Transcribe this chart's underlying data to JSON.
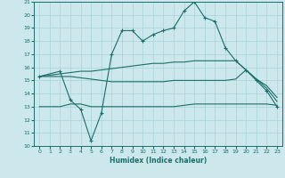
{
  "xlabel": "Humidex (Indice chaleur)",
  "bg_color": "#cce8ec",
  "grid_color": "#a8d4d8",
  "line_color": "#1a6e6a",
  "xlim": [
    -0.5,
    23.5
  ],
  "ylim": [
    10,
    21
  ],
  "xticks": [
    0,
    1,
    2,
    3,
    4,
    5,
    6,
    7,
    8,
    9,
    10,
    11,
    12,
    13,
    14,
    15,
    16,
    17,
    18,
    19,
    20,
    21,
    22,
    23
  ],
  "yticks": [
    10,
    11,
    12,
    13,
    14,
    15,
    16,
    17,
    18,
    19,
    20,
    21
  ],
  "line1_x": [
    0,
    2,
    3,
    4,
    5,
    6,
    7,
    8,
    9,
    10,
    11,
    12,
    13,
    14,
    15,
    16,
    17,
    18,
    19,
    20,
    21,
    22,
    23
  ],
  "line1_y": [
    15.3,
    15.7,
    13.5,
    12.8,
    10.4,
    12.5,
    17.0,
    18.8,
    18.8,
    18.0,
    18.5,
    18.8,
    19.0,
    20.3,
    21.0,
    19.8,
    19.5,
    17.5,
    16.5,
    15.8,
    15.0,
    14.2,
    13.0
  ],
  "line2_x": [
    0,
    2,
    3,
    4,
    5,
    6,
    7,
    8,
    9,
    10,
    11,
    12,
    13,
    14,
    15,
    16,
    17,
    18,
    19,
    20,
    21,
    22,
    23
  ],
  "line2_y": [
    15.3,
    15.5,
    15.6,
    15.7,
    15.7,
    15.8,
    15.9,
    16.0,
    16.1,
    16.2,
    16.3,
    16.3,
    16.4,
    16.4,
    16.5,
    16.5,
    16.5,
    16.5,
    16.5,
    15.8,
    15.1,
    14.4,
    13.4
  ],
  "line3_x": [
    0,
    2,
    3,
    4,
    5,
    6,
    7,
    8,
    9,
    10,
    11,
    12,
    13,
    14,
    15,
    16,
    17,
    18,
    19,
    20,
    21,
    22,
    23
  ],
  "line3_y": [
    15.3,
    15.3,
    15.3,
    15.2,
    15.1,
    15.0,
    14.9,
    14.9,
    14.9,
    14.9,
    14.9,
    14.9,
    15.0,
    15.0,
    15.0,
    15.0,
    15.0,
    15.0,
    15.1,
    15.8,
    15.1,
    14.6,
    13.7
  ],
  "line4_x": [
    0,
    2,
    3,
    4,
    5,
    6,
    7,
    8,
    9,
    10,
    11,
    12,
    13,
    14,
    15,
    16,
    17,
    18,
    19,
    20,
    21,
    22,
    23
  ],
  "line4_y": [
    13.0,
    13.0,
    13.2,
    13.2,
    13.0,
    13.0,
    13.0,
    13.0,
    13.0,
    13.0,
    13.0,
    13.0,
    13.0,
    13.1,
    13.2,
    13.2,
    13.2,
    13.2,
    13.2,
    13.2,
    13.2,
    13.2,
    13.1
  ]
}
